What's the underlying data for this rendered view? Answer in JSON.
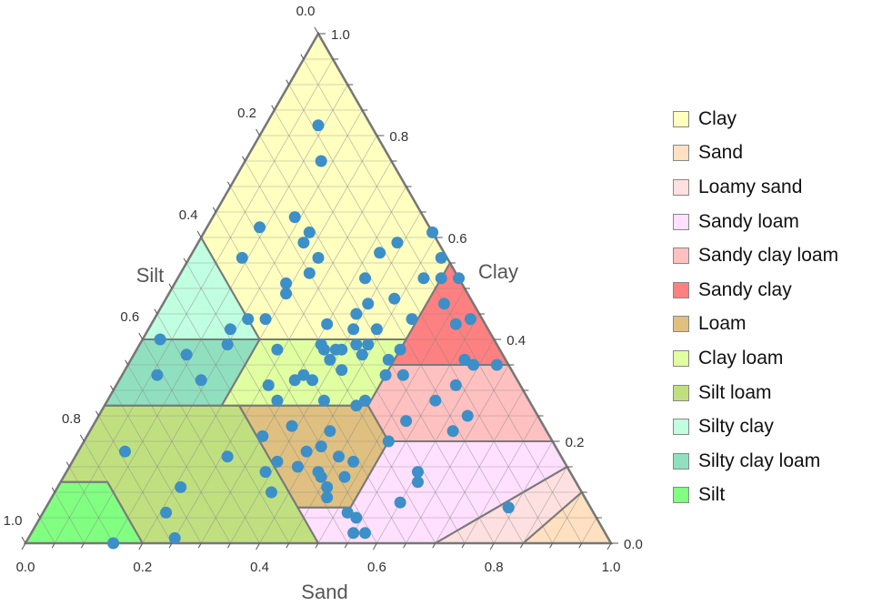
{
  "chart_data": {
    "type": "scatter",
    "subtype": "ternary",
    "axes": {
      "bottom": {
        "label": "Sand",
        "ticks": [
          "0.0",
          "0.2",
          "0.4",
          "0.6",
          "0.8",
          "1.0"
        ]
      },
      "left": {
        "label": "Silt",
        "ticks": [
          "0.0",
          "0.2",
          "0.4",
          "0.6",
          "0.8",
          "1.0"
        ]
      },
      "right": {
        "label": "Clay",
        "ticks": [
          "0.0",
          "0.2",
          "0.4",
          "0.6",
          "0.8",
          "1.0"
        ]
      }
    },
    "range": [
      0,
      1
    ],
    "grid": true,
    "grid_step": 0.05,
    "legend_position": "right",
    "point_color": "#3d8fc8",
    "regions": [
      {
        "name": "Clay",
        "color": "#ffffc0",
        "polygon_sand_clay": [
          [
            0,
            1
          ],
          [
            0.45,
            0.55
          ],
          [
            0.45,
            0.4
          ],
          [
            0.2,
            0.4
          ],
          [
            0,
            0.6
          ]
        ]
      },
      {
        "name": "Sand",
        "color": "#ffe0c0",
        "polygon_sand_clay": [
          [
            0.85,
            0
          ],
          [
            0.9,
            0.1
          ],
          [
            1,
            0
          ]
        ]
      },
      {
        "name": "Loamy sand",
        "color": "#ffe0e0",
        "polygon_sand_clay": [
          [
            0.7,
            0
          ],
          [
            0.85,
            0.15
          ],
          [
            0.9,
            0.1
          ],
          [
            0.85,
            0
          ]
        ]
      },
      {
        "name": "Sandy loam",
        "color": "#ffe0ff",
        "polygon_sand_clay": [
          [
            0.43,
            0.07
          ],
          [
            0.52,
            0.07
          ],
          [
            0.52,
            0.2
          ],
          [
            0.8,
            0.2
          ],
          [
            0.85,
            0.15
          ],
          [
            0.7,
            0
          ],
          [
            0.5,
            0
          ]
        ]
      },
      {
        "name": "Sandy clay loam",
        "color": "#ffc0c0",
        "polygon_sand_clay": [
          [
            0.45,
            0.35
          ],
          [
            0.65,
            0.35
          ],
          [
            0.8,
            0.2
          ],
          [
            0.52,
            0.2
          ],
          [
            0.45,
            0.27
          ]
        ]
      },
      {
        "name": "Sandy clay",
        "color": "#ff8080",
        "polygon_sand_clay": [
          [
            0.45,
            0.55
          ],
          [
            0.65,
            0.35
          ],
          [
            0.45,
            0.35
          ]
        ]
      },
      {
        "name": "Loam",
        "color": "#e0c080",
        "polygon_sand_clay": [
          [
            0.23,
            0.27
          ],
          [
            0.45,
            0.27
          ],
          [
            0.52,
            0.2
          ],
          [
            0.52,
            0.07
          ],
          [
            0.43,
            0.07
          ]
        ]
      },
      {
        "name": "Clay loam",
        "color": "#e0ffa0",
        "polygon_sand_clay": [
          [
            0.2,
            0.4
          ],
          [
            0.45,
            0.4
          ],
          [
            0.45,
            0.27
          ],
          [
            0.2,
            0.27
          ]
        ]
      },
      {
        "name": "Silt loam",
        "color": "#c0e080",
        "polygon_sand_clay": [
          [
            0,
            0.27
          ],
          [
            0.23,
            0.27
          ],
          [
            0.5,
            0
          ],
          [
            0.2,
            0
          ],
          [
            0.08,
            0.12
          ],
          [
            0,
            0.12
          ]
        ]
      },
      {
        "name": "Silty clay",
        "color": "#c0ffe0",
        "polygon_sand_clay": [
          [
            0,
            0.6
          ],
          [
            0.2,
            0.4
          ],
          [
            0,
            0.4
          ]
        ]
      },
      {
        "name": "Silty clay loam",
        "color": "#90e0c0",
        "polygon_sand_clay": [
          [
            0,
            0.4
          ],
          [
            0.2,
            0.4
          ],
          [
            0.2,
            0.27
          ],
          [
            0,
            0.27
          ]
        ]
      },
      {
        "name": "Silt",
        "color": "#80ff80",
        "polygon_sand_clay": [
          [
            0,
            0.12
          ],
          [
            0.08,
            0.12
          ],
          [
            0.2,
            0
          ],
          [
            0,
            0
          ]
        ]
      }
    ],
    "points_fields": [
      "sand",
      "clay"
    ],
    "points": [
      [
        0.09,
        0.82
      ],
      [
        0.13,
        0.75
      ],
      [
        0.09,
        0.62
      ],
      [
        0.14,
        0.64
      ],
      [
        0.18,
        0.61
      ],
      [
        0.18,
        0.59
      ],
      [
        0.09,
        0.56
      ],
      [
        0.22,
        0.56
      ],
      [
        0.22,
        0.53
      ],
      [
        0.19,
        0.51
      ],
      [
        0.2,
        0.49
      ],
      [
        0.32,
        0.52
      ],
      [
        0.32,
        0.57
      ],
      [
        0.34,
        0.59
      ],
      [
        0.39,
        0.61
      ],
      [
        0.43,
        0.56
      ],
      [
        0.42,
        0.52
      ],
      [
        0.45,
        0.52
      ],
      [
        0.48,
        0.52
      ],
      [
        0.48,
        0.47
      ],
      [
        0.35,
        0.47
      ],
      [
        0.39,
        0.48
      ],
      [
        0.34,
        0.45
      ],
      [
        0.16,
        0.44
      ],
      [
        0.19,
        0.44
      ],
      [
        0.3,
        0.43
      ],
      [
        0.44,
        0.44
      ],
      [
        0.54,
        0.44
      ],
      [
        0.52,
        0.43
      ],
      [
        0.14,
        0.42
      ],
      [
        0.35,
        0.42
      ],
      [
        0.39,
        0.42
      ],
      [
        0.03,
        0.4
      ],
      [
        0.15,
        0.39
      ],
      [
        0.31,
        0.39
      ],
      [
        0.32,
        0.38
      ],
      [
        0.34,
        0.38
      ],
      [
        0.35,
        0.38
      ],
      [
        0.37,
        0.39
      ],
      [
        0.39,
        0.39
      ],
      [
        0.45,
        0.38
      ],
      [
        0.39,
        0.37
      ],
      [
        0.34,
        0.36
      ],
      [
        0.37,
        0.34
      ],
      [
        0.44,
        0.36
      ],
      [
        0.45,
        0.33
      ],
      [
        0.48,
        0.33
      ],
      [
        0.24,
        0.38
      ],
      [
        0.09,
        0.37
      ],
      [
        0.06,
        0.33
      ],
      [
        0.14,
        0.32
      ],
      [
        0.26,
        0.31
      ],
      [
        0.3,
        0.32
      ],
      [
        0.31,
        0.33
      ],
      [
        0.33,
        0.32
      ],
      [
        0.57,
        0.36
      ],
      [
        0.59,
        0.35
      ],
      [
        0.63,
        0.35
      ],
      [
        0.58,
        0.31
      ],
      [
        0.29,
        0.28
      ],
      [
        0.37,
        0.28
      ],
      [
        0.43,
        0.27
      ],
      [
        0.44,
        0.28
      ],
      [
        0.56,
        0.28
      ],
      [
        0.63,
        0.25
      ],
      [
        0.53,
        0.24
      ],
      [
        0.62,
        0.22
      ],
      [
        0.3,
        0.21
      ],
      [
        0.34,
        0.23
      ],
      [
        0.41,
        0.22
      ],
      [
        0.52,
        0.2
      ],
      [
        0.08,
        0.18
      ],
      [
        0.26,
        0.17
      ],
      [
        0.39,
        0.18
      ],
      [
        0.41,
        0.19
      ],
      [
        0.45,
        0.17
      ],
      [
        0.48,
        0.16
      ],
      [
        0.39,
        0.15
      ],
      [
        0.35,
        0.16
      ],
      [
        0.34,
        0.14
      ],
      [
        0.43,
        0.14
      ],
      [
        0.44,
        0.13
      ],
      [
        0.48,
        0.13
      ],
      [
        0.6,
        0.14
      ],
      [
        0.61,
        0.12
      ],
      [
        0.21,
        0.11
      ],
      [
        0.37,
        0.1
      ],
      [
        0.46,
        0.11
      ],
      [
        0.47,
        0.09
      ],
      [
        0.6,
        0.08
      ],
      [
        0.79,
        0.07
      ],
      [
        0.21,
        0.06
      ],
      [
        0.52,
        0.06
      ],
      [
        0.54,
        0.05
      ],
      [
        0.55,
        0.02
      ],
      [
        0.57,
        0.02
      ],
      [
        0.25,
        0.01
      ],
      [
        0.15,
        0.0
      ]
    ]
  }
}
